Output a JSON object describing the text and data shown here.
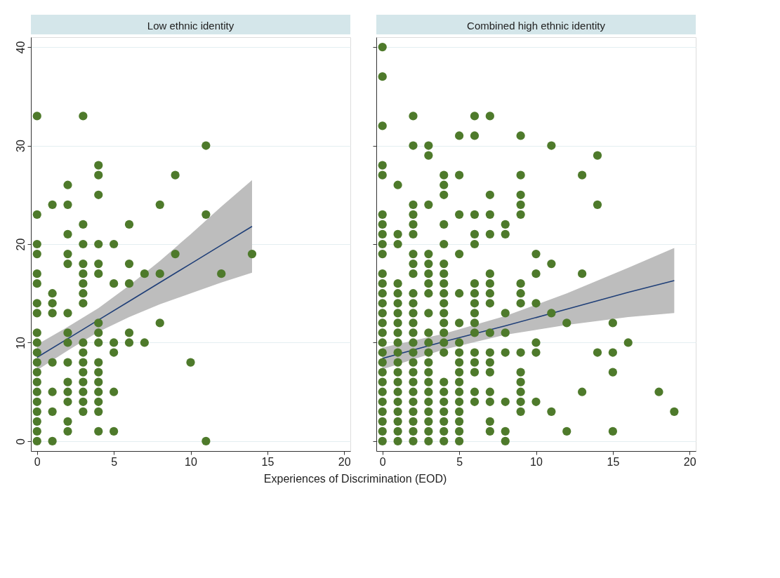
{
  "chart_data": [
    {
      "type": "scatter",
      "title": "Low ethnic identity",
      "xlabel": "Experiences of Discrimination (EOD)",
      "xlim": [
        -0.4,
        20.4
      ],
      "xticks": [
        0,
        5,
        10,
        15,
        20
      ],
      "ylim": [
        -1,
        41
      ],
      "yticks": [
        0,
        10,
        20,
        30,
        40
      ],
      "grid": "y",
      "marker": "circle",
      "series": [
        {
          "color": "#4e7a2b",
          "x": [
            0,
            0,
            0,
            0,
            0,
            0,
            0,
            0,
            0,
            0,
            0,
            0,
            0,
            0,
            0,
            0,
            0,
            0,
            0,
            0,
            1,
            1,
            1,
            1,
            1,
            1,
            1,
            1,
            2,
            2,
            2,
            2,
            2,
            2,
            2,
            2,
            2,
            2,
            2,
            2,
            2,
            2,
            3,
            3,
            3,
            3,
            3,
            3,
            3,
            3,
            3,
            3,
            3,
            3,
            3,
            3,
            3,
            3,
            4,
            4,
            4,
            4,
            4,
            4,
            4,
            4,
            4,
            4,
            4,
            4,
            4,
            4,
            4,
            4,
            5,
            5,
            5,
            5,
            5,
            5,
            6,
            6,
            6,
            6,
            6,
            7,
            7,
            8,
            8,
            8,
            9,
            9,
            10,
            11,
            11,
            11,
            12,
            14
          ],
          "values": [
            0,
            1,
            2,
            3,
            4,
            5,
            6,
            7,
            8,
            9,
            10,
            11,
            13,
            14,
            16,
            17,
            19,
            20,
            23,
            33,
            0,
            3,
            5,
            8,
            13,
            14,
            15,
            24,
            1,
            2,
            4,
            5,
            6,
            8,
            10,
            11,
            13,
            18,
            19,
            21,
            24,
            26,
            3,
            4,
            5,
            6,
            7,
            8,
            9,
            10,
            14,
            15,
            16,
            17,
            18,
            20,
            22,
            33,
            1,
            3,
            4,
            5,
            6,
            7,
            8,
            10,
            11,
            12,
            17,
            18,
            20,
            25,
            27,
            28,
            1,
            5,
            9,
            10,
            16,
            20,
            10,
            11,
            16,
            18,
            22,
            10,
            17,
            12,
            17,
            24,
            19,
            27,
            8,
            0,
            23,
            30,
            17,
            19
          ]
        },
        {
          "type": "line",
          "marker": "none",
          "color": "#1f3f78",
          "x": [
            0,
            2,
            4,
            6,
            8,
            10,
            12,
            14
          ],
          "values": [
            8.5,
            10.4,
            12.3,
            14.2,
            16.1,
            18.0,
            19.9,
            21.8
          ],
          "lower": [
            7.2,
            9.2,
            11.1,
            12.6,
            13.9,
            15.0,
            16.1,
            17.1
          ],
          "upper": [
            9.8,
            11.6,
            13.5,
            15.8,
            18.3,
            21.0,
            23.8,
            26.5
          ]
        }
      ]
    },
    {
      "type": "scatter",
      "title": "Combined high ethnic identity",
      "xlim": [
        -0.4,
        20.4
      ],
      "xticks": [
        0,
        5,
        10,
        15,
        20
      ],
      "ylim": [
        -1,
        41
      ],
      "yticks": [
        0,
        10,
        20,
        30,
        40
      ],
      "grid": "y",
      "marker": "circle",
      "tick_labels": "x",
      "series": [
        {
          "color": "#4e7a2b",
          "x": [
            0,
            0,
            0,
            0,
            0,
            0,
            0,
            0,
            0,
            0,
            0,
            0,
            0,
            0,
            0,
            0,
            0,
            0,
            0,
            0,
            0,
            0,
            0,
            0,
            0,
            0,
            0,
            0,
            1,
            1,
            1,
            1,
            1,
            1,
            1,
            1,
            1,
            1,
            1,
            1,
            1,
            1,
            1,
            1,
            1,
            1,
            1,
            1,
            2,
            2,
            2,
            2,
            2,
            2,
            2,
            2,
            2,
            2,
            2,
            2,
            2,
            2,
            2,
            2,
            2,
            2,
            2,
            2,
            2,
            2,
            2,
            2,
            2,
            3,
            3,
            3,
            3,
            3,
            3,
            3,
            3,
            3,
            3,
            3,
            3,
            3,
            3,
            3,
            3,
            3,
            3,
            3,
            3,
            3,
            4,
            4,
            4,
            4,
            4,
            4,
            4,
            4,
            4,
            4,
            4,
            4,
            4,
            4,
            4,
            4,
            4,
            4,
            4,
            4,
            4,
            4,
            5,
            5,
            5,
            5,
            5,
            5,
            5,
            5,
            5,
            5,
            5,
            5,
            5,
            5,
            5,
            5,
            5,
            6,
            6,
            6,
            6,
            6,
            6,
            6,
            6,
            6,
            6,
            6,
            6,
            6,
            6,
            6,
            6,
            7,
            7,
            7,
            7,
            7,
            7,
            7,
            7,
            7,
            7,
            7,
            7,
            7,
            7,
            7,
            7,
            8,
            8,
            8,
            8,
            8,
            8,
            8,
            8,
            9,
            9,
            9,
            9,
            9,
            9,
            9,
            9,
            9,
            9,
            9,
            9,
            9,
            9,
            10,
            10,
            10,
            10,
            10,
            10,
            11,
            11,
            11,
            11,
            12,
            12,
            13,
            13,
            13,
            14,
            14,
            14,
            15,
            15,
            15,
            15,
            16,
            18,
            19
          ],
          "values": [
            0,
            1,
            2,
            3,
            4,
            5,
            6,
            7,
            8,
            9,
            10,
            11,
            12,
            13,
            14,
            15,
            16,
            17,
            19,
            20,
            21,
            22,
            23,
            27,
            28,
            32,
            37,
            40,
            0,
            1,
            2,
            3,
            4,
            5,
            6,
            7,
            8,
            9,
            10,
            11,
            12,
            13,
            14,
            15,
            16,
            20,
            21,
            26,
            0,
            1,
            2,
            3,
            4,
            5,
            6,
            7,
            8,
            9,
            10,
            11,
            12,
            13,
            14,
            15,
            17,
            18,
            19,
            21,
            22,
            23,
            24,
            30,
            33,
            0,
            1,
            2,
            3,
            4,
            5,
            6,
            7,
            8,
            9,
            10,
            11,
            13,
            15,
            16,
            17,
            18,
            19,
            24,
            29,
            30,
            0,
            1,
            2,
            3,
            4,
            5,
            6,
            9,
            10,
            11,
            12,
            13,
            14,
            15,
            16,
            17,
            18,
            20,
            22,
            25,
            26,
            27,
            0,
            1,
            2,
            3,
            4,
            5,
            6,
            7,
            8,
            9,
            10,
            12,
            15,
            19,
            23,
            27,
            31,
            4,
            5,
            7,
            8,
            9,
            11,
            12,
            13,
            14,
            15,
            16,
            20,
            21,
            23,
            31,
            33,
            1,
            2,
            4,
            5,
            7,
            8,
            9,
            11,
            14,
            15,
            16,
            17,
            21,
            23,
            25,
            33,
            0,
            1,
            4,
            9,
            11,
            13,
            21,
            22,
            3,
            4,
            5,
            6,
            7,
            9,
            14,
            15,
            16,
            23,
            24,
            25,
            27,
            31,
            4,
            9,
            10,
            14,
            17,
            19,
            3,
            13,
            18,
            30,
            1,
            12,
            5,
            17,
            27,
            9,
            24,
            29,
            1,
            7,
            9,
            12,
            10,
            5,
            3
          ]
        },
        {
          "type": "line",
          "marker": "none",
          "color": "#1f3f78",
          "x": [
            0,
            4,
            8,
            12,
            16,
            19
          ],
          "values": [
            8.4,
            10.1,
            11.7,
            13.4,
            15.1,
            16.3
          ],
          "lower": [
            7.3,
            9.3,
            10.8,
            11.8,
            12.6,
            13.0
          ],
          "upper": [
            9.5,
            10.9,
            12.7,
            15.0,
            17.6,
            19.6
          ]
        }
      ]
    }
  ]
}
